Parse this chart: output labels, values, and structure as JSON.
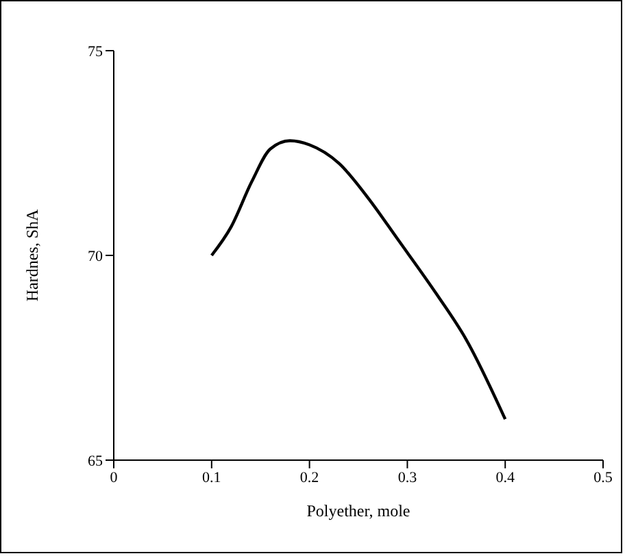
{
  "chart_data": {
    "type": "line",
    "xlabel": "Polyether, mole",
    "ylabel": "Hardnes, ShA",
    "x": [
      0.1,
      0.12,
      0.141,
      0.16,
      0.18,
      0.2,
      0.23,
      0.26,
      0.29,
      0.33,
      0.36,
      0.4
    ],
    "series": [
      {
        "color": "#000000",
        "values": [
          70,
          70.7,
          71.8,
          72.6,
          72.8,
          72.7,
          72.25,
          71.4,
          70.4,
          69.05,
          67.95,
          66
        ]
      }
    ],
    "xlim": [
      0,
      0.5
    ],
    "xticks": [
      0,
      0.1,
      0.2,
      0.3,
      0.4,
      0.5
    ],
    "ylim": [
      65,
      75
    ],
    "yticks": [
      65,
      70,
      75
    ],
    "grid": false,
    "legend": false,
    "marker": "none",
    "line_style": "solid"
  }
}
